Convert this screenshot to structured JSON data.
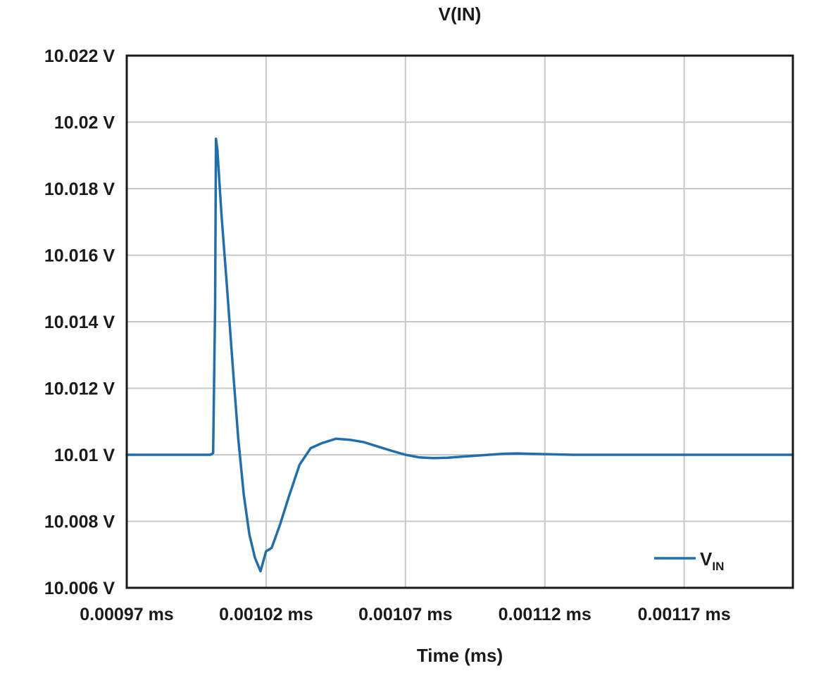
{
  "chart_data": {
    "type": "line",
    "title": "V(IN)",
    "xlabel": "Time (ms)",
    "ylabel": "",
    "xlim": [
      0.00097,
      0.001209
    ],
    "ylim": [
      10.006,
      10.022
    ],
    "x_ticks": [
      0.00097,
      0.00102,
      0.00107,
      0.00112,
      0.00117
    ],
    "x_tick_labels": [
      "0.00097 ms",
      "0.00102 ms",
      "0.00107 ms",
      "0.00112 ms",
      "0.00117 ms"
    ],
    "y_ticks": [
      10.006,
      10.008,
      10.01,
      10.012,
      10.014,
      10.016,
      10.018,
      10.02,
      10.022
    ],
    "y_tick_labels": [
      "10.006 V",
      "10.008 V",
      "10.01 V",
      "10.012 V",
      "10.014 V",
      "10.016 V",
      "10.018 V",
      "10.02 V",
      "10.022 V"
    ],
    "grid": true,
    "legend": {
      "position": "bottom-right",
      "main": "V",
      "sub": "IN"
    },
    "colors": {
      "series": "#1f6fb0",
      "grid": "#c8c8c8",
      "frame": "#1a1a1a"
    },
    "series": [
      {
        "name": "VIN",
        "x": [
          0.00097,
          0.00098,
          0.00099,
          0.001,
          0.001001,
          0.0010017,
          0.001002,
          0.0010025,
          0.001004,
          0.001006,
          0.001008,
          0.00101,
          0.001012,
          0.001014,
          0.001016,
          0.001018,
          0.00102,
          0.001022,
          0.001025,
          0.001028,
          0.001032,
          0.001036,
          0.00104,
          0.001045,
          0.00105,
          0.001055,
          0.00106,
          0.001065,
          0.00107,
          0.001075,
          0.00108,
          0.001085,
          0.00109,
          0.001095,
          0.0011,
          0.001105,
          0.00111,
          0.00112,
          0.00113,
          0.00115,
          0.00117,
          0.00119,
          0.001209
        ],
        "y": [
          10.01,
          10.01,
          10.01,
          10.01,
          10.01005,
          10.0145,
          10.0195,
          10.0192,
          10.0172,
          10.015,
          10.0127,
          10.0105,
          10.0088,
          10.0076,
          10.0069,
          10.0065,
          10.0071,
          10.0072,
          10.0079,
          10.0087,
          10.0097,
          10.0102,
          10.01035,
          10.01048,
          10.01045,
          10.01038,
          10.01025,
          10.01012,
          10.01,
          10.00992,
          10.0099,
          10.00991,
          10.00994,
          10.00997,
          10.01,
          10.01003,
          10.01004,
          10.01002,
          10.01,
          10.01,
          10.01,
          10.01,
          10.01
        ]
      }
    ]
  }
}
